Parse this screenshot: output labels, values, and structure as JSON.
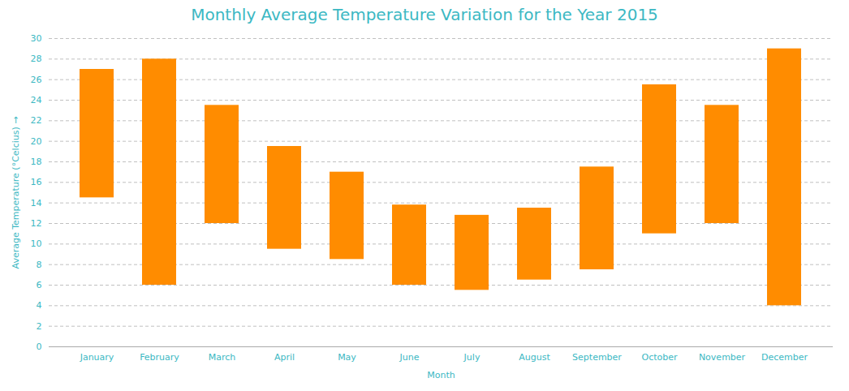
{
  "chart_data": {
    "type": "range_bar",
    "title": "Monthly Average Temperature Variation for the Year 2015",
    "xlabel": "Month",
    "ylabel": "Average Temperature (°Celcius)",
    "categories": [
      "January",
      "February",
      "March",
      "April",
      "May",
      "June",
      "July",
      "August",
      "September",
      "October",
      "November",
      "December"
    ],
    "low": [
      14.5,
      6.0,
      12.0,
      9.5,
      8.5,
      6.0,
      5.5,
      6.5,
      7.5,
      11.0,
      12.0,
      4.0
    ],
    "high": [
      27.0,
      28.0,
      23.5,
      19.5,
      17.0,
      13.8,
      12.8,
      13.5,
      17.5,
      25.5,
      23.5,
      29.0
    ],
    "color": "#FF8C00",
    "ylim": [
      0,
      30
    ],
    "yticks": [
      0,
      2,
      4,
      6,
      8,
      10,
      12,
      14,
      16,
      18,
      20,
      22,
      24,
      26,
      28,
      30
    ],
    "grid": true
  }
}
